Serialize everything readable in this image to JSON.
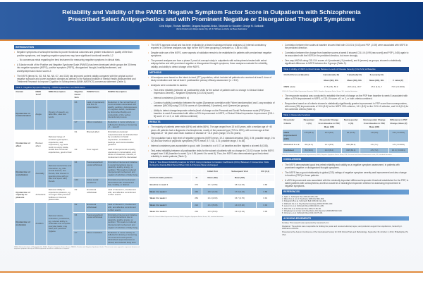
{
  "header": {
    "title_line1": "Reliability and Validity of the PANSS Negative Symptom Factor Score in Outpatients with Schizophrenia",
    "title_line2": "Prescribed Select Antipsychotics and with Prominent Negative or Disorganized Thought Symptoms",
    "authors": "Chris Edgar¹, Thomas Blaettler², Dragana Bugarski-Kirola², Stephanie Le Scouiller², George M. Garibaldi²",
    "affiliations": "¹Roche Products Ltd, Welwyn Garden City, UK; ²F. Hoffmann-La Roche Ltd, Basel, Switzerland"
  },
  "intro": {
    "heading": "INTRODUCTION",
    "bullets": [
      "Negative symptoms of schizophrenia lead to poorer functional outcomes and greater reductions in quality of life than positive symptoms, and targeting negative symptoms may have significant functional benefits.1,2",
      "No consensus exists regarding the best instrument for measuring negative symptoms in clinical trials.",
      "A 5-factor model of the Positive and Negative Syndrome Scale (PANSS) has been developed which groups the 30 items into negative symptom (NSFS), positive symptom (PSFS), disorganized thought, hostility/excitement, and anxiety/depression factor scores.3",
      "The NSFS (items N1, N2, N3, N4, N6, G7, and G16) has improved content validity compared with the original a priori negative subscale and covers symptom domains as defined in the National Institute of Mental Health-Measurement and Treatment Research to Improve Cognition in Schizophrenia (NIMH-MATRICS) consensus statement (Table 1)."
    ]
  },
  "table1": {
    "caption": "Table 1. Negative Symptom Mapping – NIMH Agreed Term vs NSFS Items",
    "headers": [
      "Domain",
      "NIMH Term¹",
      "NIMH Description",
      "Negative Factor Item",
      "PANSS Term",
      "PANSS Description"
    ],
    "groups": [
      {
        "domain": "Dysfunction of communication",
        "term": "Alogia",
        "desc": "Poverty of speech, eg, talks little, uses few words",
        "rows": [
          [
            "N6",
            "Lack of spontaneity and flow of conversation",
            "Reduction in the normal flow of communication associated with apathy, avolition, defensiveness, or cognitive deficit, manifested by diminished fluidity and productivity of the verbal-interactional process"
          ],
          [
            "G7",
            "Motor retardation",
            "Reduction in motor activity as reflected in slowing or lessening of ... speech"
          ]
        ]
      },
      {
        "domain": "Dysfunction of affect",
        "term": "Blunted affect",
        "desc": "Reduced range of emotions (perception, experience, and expression), eg, feels numb or empty inside, recalls few emotional experiences, good or bad",
        "rows": [
          [
            "N1",
            "Blunted affect",
            "Diminished emotional responsiveness as characterized by a reduction in facial expression, modulation of feelings, and communicative gestures"
          ],
          [
            "N3",
            "Poor rapport",
            "Lack of interpersonal empathy, openness in conversation, and sense of closeness, interest, or involvement with the interviewer"
          ]
        ]
      },
      {
        "domain": "Dysfunction of socialization",
        "term": "Asociality",
        "desc": "Reduced social drive and interaction, eg, little sexual interest, few friends, little interest in spending time with (or little time spent with) friends",
        "rows": [
          [
            "N4",
            "Passive/apathetic social withdrawal",
            "Diminished interest and initiative in social interactions due to passivity, apathy, anergy, or avolition. This leads to reduced interpersonal involvement and neglect of activities of daily living"
          ],
          [
            "G16",
            "Active social avoidance",
            "Diminished social involvement associated with unwarranted fear, hostility, or distrust"
          ]
        ]
      },
      {
        "domain": "Dysfunction of capacity for pleasure",
        "term": "Anhedonia",
        "desc": "Reduced ability to experience pleasure, eg, no longer finds previous hobbies or interests pleasurable",
        "rows": [
          [
            "N2",
            "Emotional withdrawal",
            "Lack of interest in, involvement with, and affective commitment to life's events"
          ]
        ]
      },
      {
        "domain": "Dysfunction of motivation",
        "term": "Avolition",
        "desc": "Reduced desire, motivation, persistence, eg, reduced ability to undertake and complete everyday tasks; may have poor personal hygiene",
        "rows": [
          [
            "N2",
            "Emotional withdrawal",
            "Lack of interest in, involvement with, and affective commitment to life's events"
          ],
          [
            "N4",
            "Passive/apathetic social withdrawal",
            "Diminished interest and initiative in social interactions due to passivity, apathy, anergy, or avolition. This leads to reduced interpersonal involvement and neglect of activities of daily living"
          ],
          [
            "G7",
            "Motor retardation",
            "Reduction in motor activity as reflected in slowing or lessening of movements and speech, diminished responsiveness to stimuli, and reduced body tone"
          ]
        ]
      }
    ],
    "footnote": "NIMH, National Institute of Mental Health; NSFS, Negative Symptom Factor Score; PANSS, Positive and Negative Syndrome Scale. ¹These terms were agreed to represent domains of negative symptoms during an NIMH-supported consensus conference of experts."
  },
  "col2": {
    "bullets": [
      "The NSFS appears robust and has been replicated in at least 6 subsequent factor analyses.4-8 Internal consistency reported in 3 of these analyses was high for the NSFS item grouping (Cronbach's α, 0.85 to 0.88).",
      "Despite wide use of the NSFS, some aspects of validation remain to be established in patients with predominant negative symptoms.",
      "The present analyses are from a phase 2 proof-of-concept study in outpatients with schizophrenia treated with select antipsychotics and with prominent negative or disorganized thought symptoms; these analyses evaluate the reliability, validity, and ability to detect change of the NSFS."
    ]
  },
  "methods": {
    "heading": "METHODS",
    "bullets": [
      "All analyses were based on the intent-to-treat (ITT) population, which included all patients who received at least 1 dose of study medication and had at least 1 postbaseline primary efficacy assessment (n = 312).",
      "Analyses were conducted to assess:"
    ],
    "sub": [
      "Test-retest reliability (between all postbaseline visits for the subset of patients with no change in Clinical Global Impression-Severity – Negative Symptoms [CGI-S-N] score)",
      "Internal consistency (Cronbach's α)",
      "Construct validity (correlation between the scales [Spearman correlation with Fisher transformation] and 1-way analysis of variance [ANOVA] using CGI-S-N scores of 4 [moderate], 5 [marked], and 6 [severe] as groups)",
      "Ability to detect change/responder criteria (level of change on the Personal and Social Performance scale [PSP] from baseline to week 8 associated with either a 20% improvement in NSFS, a Clinical Global Impression-Improvement [CGI-I-N] score of 1 or 2, or both criteria combined)"
    ]
  },
  "results": {
    "heading": "RESULTS",
    "bullets": [
      "The majority of patients were male (64%) and white (66%). The age ranged from 18 to 60 years, with a median age of ~40 years. All patients had a diagnosis of schizophrenia, mostly of the paranoid type (70% to 80%), with a mean age at first diagnosis of ~26 years and mean duration of disease of ~11.5 years (range, 0 to 51 years).",
      "The population had a high level of negative symptoms (NSFS mean, 19.2; standard deviation [SD], 3.94; possible range, 0 to 42) and low levels of psychotic symptoms (PSFS mean, 9.7; SD, 3.74; possible range, 0 to 48).",
      "Internal consistency was acceptable to good, with Cronbach's α of 0.71 at baseline and the highest α at week 8 (0.88).",
      "Test-retest reliability between all postbaseline visits for the subset of patients with no change in CGI-S-N score for the NSFS ranged from 0.86 (baseline to week 1) to 0.95 (week 6 to week 8). Thus, the NSFS also demonstrated good test-retest reliability in stable patients (Table 2)."
    ]
  },
  "table2": {
    "caption": "Table 2. Test-Retest Reliability Analysis for NSFS Using Intraclass Correlation Coefficients (ICCs) Between 2 Consecutive Visits During the Double-Blind Period When CGI-S-N Scores Were Unchanged",
    "headers": [
      "",
      "",
      "Initial Visit",
      "Subsequent Visit",
      "ICC (3,1)"
    ],
    "subheaders": [
      "CGI-S-N stable patients",
      "N",
      "Mean (SD)",
      "Mean (SD)",
      ""
    ],
    "rows": [
      [
        "Baseline to week 1",
        "273",
        "19.1 (3.86)",
        "18.3 (4.03)",
        "0.86"
      ],
      [
        "Week 1 to week 2",
        "249",
        "18.0 (4.20)",
        "17.0 (4.44)",
        "0.89"
      ],
      [
        "Week 2 to week 4",
        "254",
        "16.4 (4.63)",
        "15.7 (4.76)",
        "0.91"
      ],
      [
        "Week 4 to week 6",
        "224",
        "15.4 (5.08)",
        "14.9 (5.20)",
        "0.94"
      ],
      [
        "Week 6 to week 8",
        "219",
        "13.9 (5.04)",
        "13.6 (5.24)",
        "0.95"
      ]
    ],
    "footnote": "CGI-S-N, Clinical Global Impression-Severity; NSFS, Negative Symptom Factor Score; SD, standard deviation."
  },
  "col3": {
    "bullets": [
      "Correlation between the scales at baseline showed that both CGI-S-N (0.63) and PSP (-0.39) were associated with NSFS in the predicted direction.",
      "Correlation between the change from baseline scores at week 8 showed CGI-I-N (0.99 [raw score]) and PSP (-0.65) again to be associated with the NSFS in the predicted direction, but more strongly.",
      "One-way ANOVA using CGI-S-N scores of 4 (moderate), 5 (marked), and 6 (severe) as groups, showed a statistically significant difference in NSFS between the 3 groups (Table 3)."
    ],
    "bullets2": [
      "The responder analysis was conducted to establish the level of change on the PSP from baseline to week 8 associated with either a 20% improvement in NSFS, a CGI-I-N score of 1 or 2, or both criteria combined.",
      "Responders based on all criteria showed a statistically significantly greater improvement in PSP score than nonresponders, with mean (SD) improvements of 10.6 (8.6) for the NSFS 20% criterion, 14.1 (8.9) for the CGI-I-N criterion, and 14.6 (8.4) for the combined criteria (Table 4)."
    ]
  },
  "table3": {
    "caption": "Table 3. Ability of NSFS to Discriminate Between Levels of Disease Severity (CGI-S-N) at Baseline",
    "headers": [
      "CGI-S-N Score at Baseline",
      "4 (moderately ill)",
      "5 (markedly ill)",
      "6 (severely ill)",
      ""
    ],
    "subheaders": [
      "",
      "Mean (SD), N%",
      "Mean (SD), N%",
      "Mean (SD), N%",
      "F value (P)"
    ],
    "rows": [
      [
        "NSFS score",
        "17.5 (2.8), 56.3",
        "20.6 (3.2), 36.7",
        "25.3 (4.6), 7",
        "79.6 (<0.0001)"
      ]
    ],
    "footnote": "CGI-S-N, Clinical Global Impression-Severity; NSFS, Negative Symptom Factor Score; SD, standard deviation."
  },
  "table4": {
    "caption": "Table 4. Responder Analysis",
    "headers": [
      "Responder Criteria",
      "Responder n (%)",
      "Responder Change From Baseline in PSP, Mean (SD)",
      "Nonresponder n (%)",
      "Nonresponder Change From Baseline in PSP, Mean (SD)",
      "Difference in PSP Change, Mean (P)"
    ],
    "rows": [
      [
        "NSFS improvement ≥20%",
        "178 (65.4)",
        "10.6 (8.6)",
        "94 (34.6)",
        "1.8 (5.8)",
        "8.8 (<0.0001)"
      ],
      [
        "CGI-I-N of 1 or 2",
        "86 (31.6)",
        "14.1 (8.9)",
        "186 (68.4)",
        "4.6 (7.1)",
        "9.5 (<0.0001)"
      ],
      [
        "Combined",
        "84 (30.9)",
        "14.6 (8.4)",
        "188 (69.1)",
        "4.5 (7.2)",
        "10.2 (<0.0001)"
      ]
    ],
    "footnote": "CGI-I-N, Clinical Global Impression-Improvement; NSFS, Negative Symptom Factor Score; PSP, Personal and Social Performance scale; SD, standard deviation."
  },
  "conclusions": {
    "heading": "CONCLUSIONS",
    "bullets": [
      "The NSFS demonstrated good test-retest reliability and validity as a negative symptom assessment, in patients with prominent negative or disorganized thought symptoms.",
      "The NSFS has a good relationship to global (CGI) ratings of negative symptom severity and improvement and also change in function (PSP) in these patients.",
      "A ≥20% improvement was associated with the minimally important difference/responder threshold established for the PSP, in stable patients with schizophrenia, and thus would be a meaningful responder criterion for assessing improvement in negative symptoms."
    ]
  },
  "references": {
    "heading": "REFERENCES",
    "items": [
      "1. Alphs L. Schizophr Res 2006;32:225–230.",
      "2. Milev P et al. Am J Psychiatry 2005;162:495–506.",
      "3. Kirkpatrick B et al. Schizophr Bull 2006;32:214–219.",
      "4. Wallwork JE et al. Psychopharmacology 2000;150:399–403.",
      "5. Lancon C et al. Schizophr Res 2000;42:231–239.",
      "6. Mohr PE et al. Schizophr Res 2004;71:83–95.",
      "7. Wingberg E et al. Eur Arch Psychiatry Clin Neurosci 2008;258:532–540.",
      "8. Citrome L et al. Schizophr Res 2011;131:75–81."
    ]
  },
  "acknowledgements": {
    "heading": "ACKNOWLEDGEMENTS",
    "lines": [
      "Funding: This research was sponsored by Genentech, Inc.",
      "Disclaimer: The authors were responsible for drafting the poster and received editorial, layout, and production support from ApotheCom, funded by F. Hoffmann-La Roche.",
      "Presented at the Autumn Conference of the International Society for CNS Clinical Trials and Methodology, September 30–October 2, 2013, Philadelphia, PA, USA."
    ]
  },
  "colors": {
    "header": "#1d4a8e",
    "accent": "#e08a3c",
    "row": "#9bbdd9"
  }
}
